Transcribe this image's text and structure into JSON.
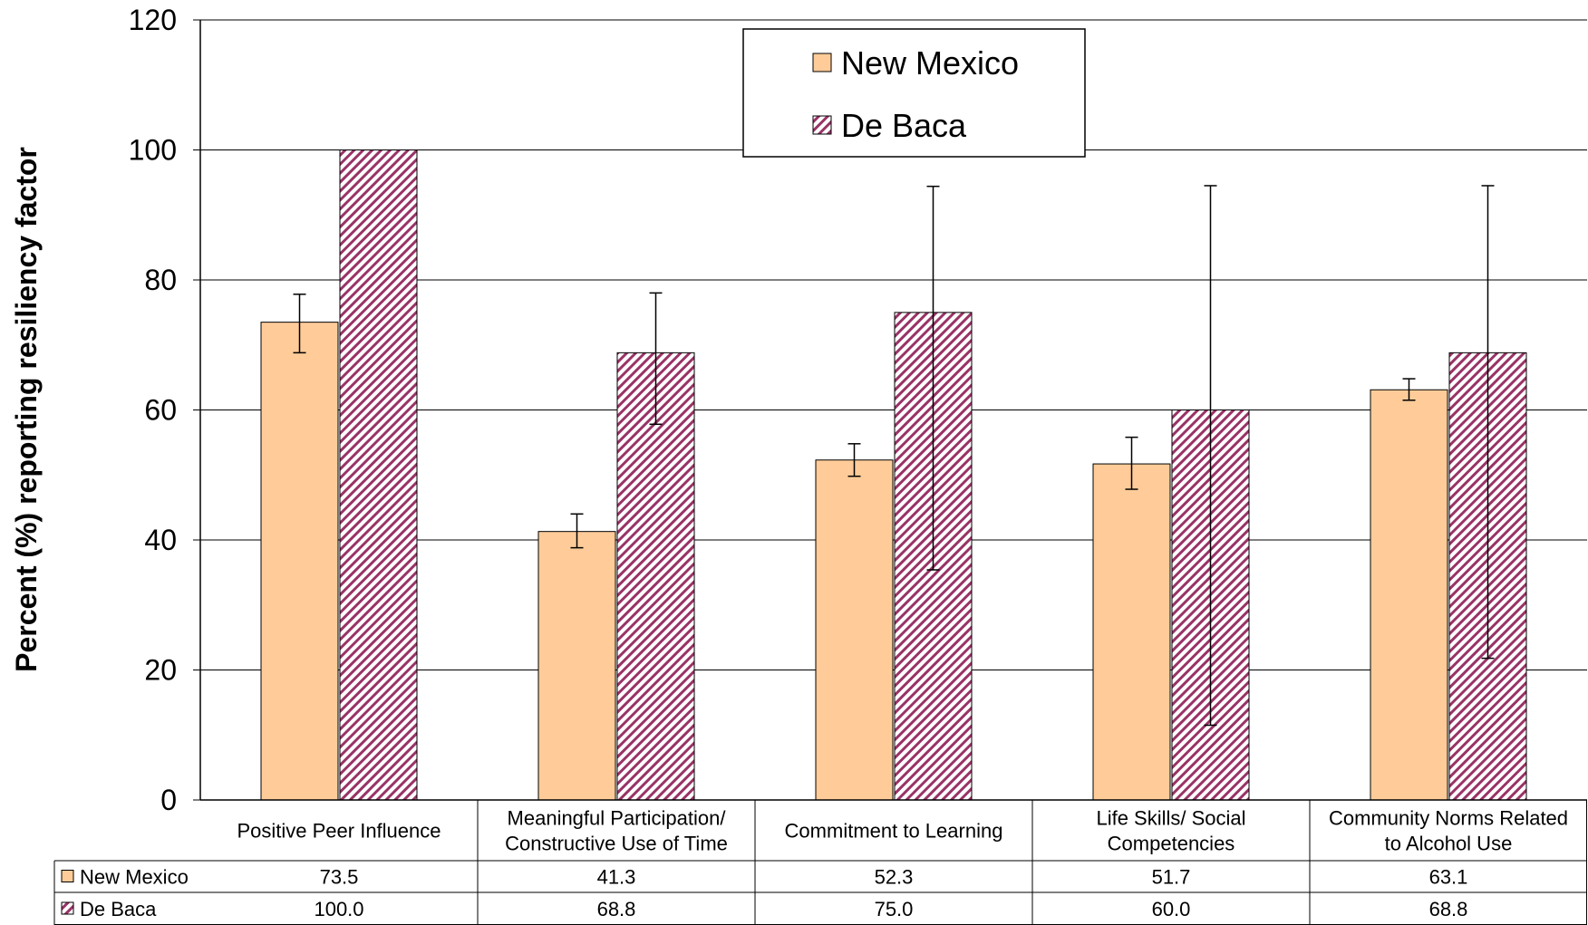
{
  "chart_data": {
    "type": "bar",
    "ylabel": "Percent (%)  reporting resiliency factor",
    "ylim": [
      0,
      120
    ],
    "yticks": [
      0,
      20,
      40,
      60,
      80,
      100,
      120
    ],
    "grid": true,
    "legend_position": "top-center",
    "categories": [
      [
        "Positive Peer Influence"
      ],
      [
        "Meaningful Participation/",
        "Constructive Use of Time"
      ],
      [
        "Commitment to Learning"
      ],
      [
        "Life Skills/ Social",
        "Competencies"
      ],
      [
        "Community Norms Related",
        "to Alcohol Use"
      ]
    ],
    "series": [
      {
        "name": "New Mexico",
        "values": [
          73.5,
          41.3,
          52.3,
          51.7,
          63.1
        ],
        "labels": [
          "73.5",
          "41.3",
          "52.3",
          "51.7",
          "63.1"
        ],
        "error_low": [
          68.8,
          38.8,
          49.8,
          47.8,
          61.5
        ],
        "error_high": [
          77.8,
          44.0,
          54.8,
          55.8,
          64.8
        ],
        "color": "#FFCC99",
        "pattern": "solid"
      },
      {
        "name": "De Baca",
        "values": [
          100.0,
          68.8,
          75.0,
          60.0,
          68.8
        ],
        "labels": [
          "100.0",
          "68.8",
          "75.0",
          "60.0",
          "68.8"
        ],
        "error_low": [
          null,
          57.8,
          35.4,
          11.5,
          21.8
        ],
        "error_high": [
          null,
          78.0,
          94.4,
          94.5,
          94.5
        ],
        "color": "#993366",
        "pattern": "diagonal-hatch"
      }
    ]
  }
}
